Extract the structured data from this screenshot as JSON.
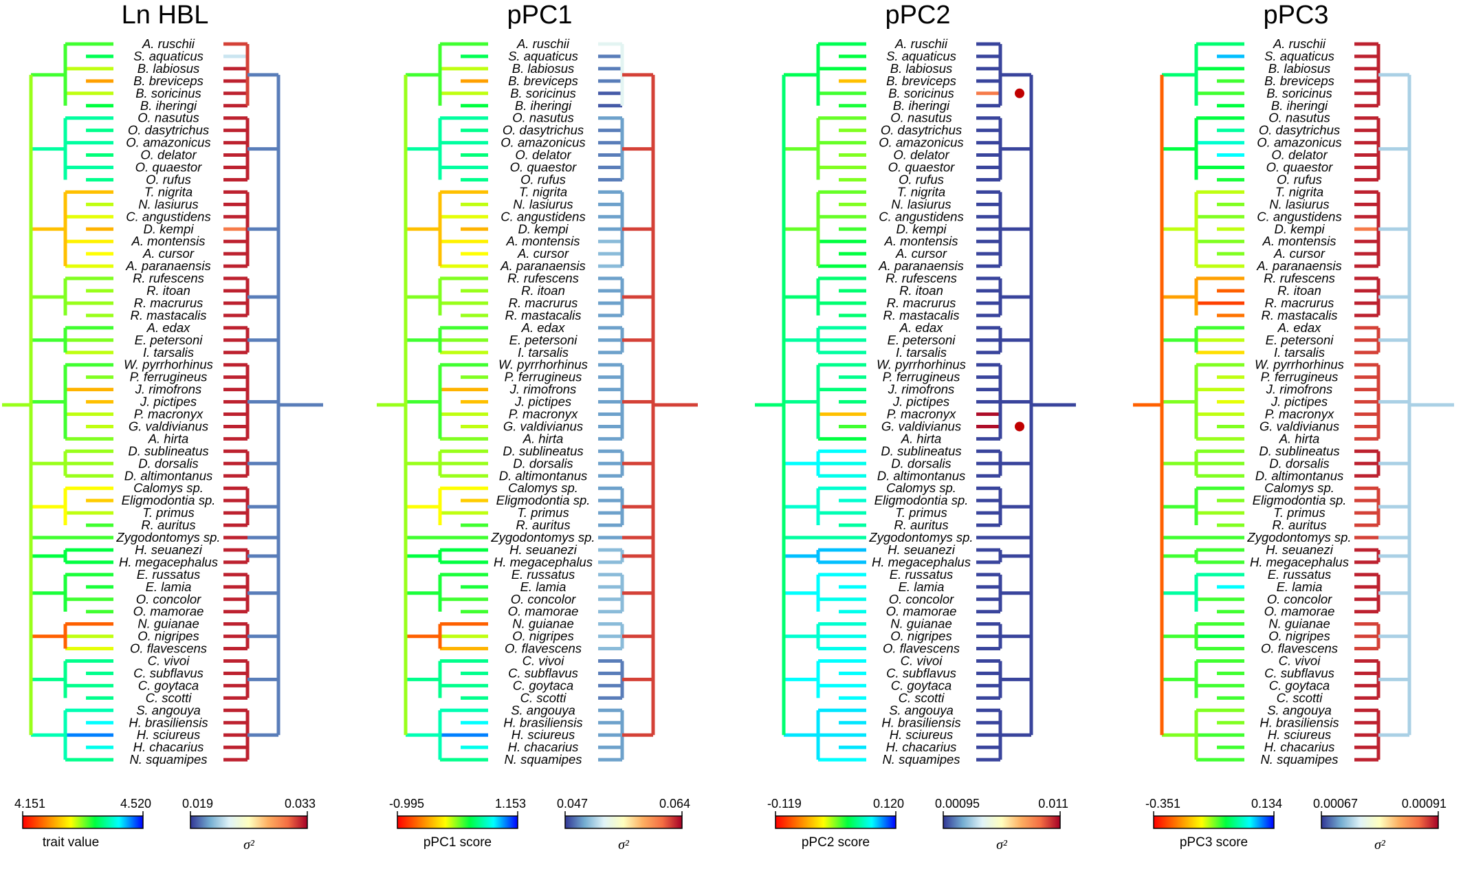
{
  "taxa": [
    "A. ruschii",
    "S. aquaticus",
    "B. labiosus",
    "B. breviceps",
    "B. soricinus",
    "B. iheringi",
    "O. nasutus",
    "O. dasytrichus",
    "O. amazonicus",
    "O. delator",
    "O. quaestor",
    "O. rufus",
    "T. nigrita",
    "N. lasiurus",
    "C. angustidens",
    "D. kempi",
    "A. montensis",
    "A. cursor",
    "A. paranaensis",
    "R. rufescens",
    "R. itoan",
    "R. macrurus",
    "R. mastacalis",
    "A. edax",
    "E. petersoni",
    "I. tarsalis",
    "W. pyrrhorhinus",
    "P. ferrugineus",
    "J. rimofrons",
    "J. pictipes",
    "P. macronyx",
    "G. valdivianus",
    "A. hirta",
    "D. sublineatus",
    "D. dorsalis",
    "D. altimontanus",
    "Calomys sp.",
    "Eligmodontia sp.",
    "T. primus",
    "R. auritus",
    "Zygodontomys sp.",
    "H. seuanezi",
    "H. megacephalus",
    "E. russatus",
    "E. lamia",
    "O. concolor",
    "O. mamorae",
    "N. guianae",
    "O. nigripes",
    "O. flavescens",
    "C. vivoi",
    "C. subflavus",
    "C. goytaca",
    "C. scotti",
    "S. angouya",
    "H. brasiliensis",
    "H. sciureus",
    "H. chacarius",
    "N. squamipes"
  ],
  "panels": [
    {
      "title": "Ln HBL",
      "trait_min": "4.151",
      "trait_max": "4.520",
      "trait_label": "trait value",
      "rate_min": "0.019",
      "rate_max": "0.033",
      "rate_label": "σ²",
      "trait_color_values": [
        0.55,
        0.62,
        0.45,
        0.25,
        0.45,
        0.6,
        0.7,
        0.68,
        0.7,
        0.66,
        0.7,
        0.68,
        0.3,
        0.45,
        0.42,
        0.28,
        0.38,
        0.4,
        0.42,
        0.5,
        0.48,
        0.48,
        0.48,
        0.55,
        0.5,
        0.45,
        0.55,
        0.5,
        0.28,
        0.3,
        0.45,
        0.45,
        0.5,
        0.48,
        0.48,
        0.48,
        0.4,
        0.32,
        0.45,
        0.55,
        0.55,
        0.6,
        0.6,
        0.58,
        0.58,
        0.55,
        0.55,
        0.15,
        0.45,
        0.42,
        0.68,
        0.68,
        0.68,
        0.68,
        0.72,
        0.8,
        0.9,
        0.78,
        0.68
      ],
      "rate_color_values": [
        0.9,
        0.3,
        0.95,
        0.95,
        0.95,
        0.95,
        0.95,
        0.95,
        0.95,
        0.95,
        0.95,
        0.95,
        0.95,
        0.95,
        0.95,
        0.8,
        0.95,
        0.95,
        0.95,
        0.95,
        0.95,
        0.95,
        0.95,
        0.95,
        0.95,
        0.95,
        0.95,
        0.95,
        0.95,
        0.95,
        0.95,
        0.95,
        0.95,
        0.95,
        0.95,
        0.95,
        0.95,
        0.95,
        0.95,
        0.95,
        0.95,
        0.95,
        0.95,
        0.95,
        0.95,
        0.95,
        0.95,
        0.95,
        0.95,
        0.95,
        0.95,
        0.95,
        0.95,
        0.95,
        0.95,
        0.95,
        0.95,
        0.95,
        0.95
      ],
      "rate_backbone": 0.1
    },
    {
      "title": "pPC1",
      "trait_min": "-0.995",
      "trait_max": "1.153",
      "trait_label": "pPC1 score",
      "rate_min": "0.047",
      "rate_max": "0.064",
      "rate_label": "σ²",
      "trait_color_values": [
        0.55,
        0.62,
        0.45,
        0.25,
        0.45,
        0.6,
        0.7,
        0.68,
        0.7,
        0.66,
        0.7,
        0.68,
        0.3,
        0.45,
        0.42,
        0.28,
        0.38,
        0.4,
        0.42,
        0.5,
        0.48,
        0.48,
        0.48,
        0.55,
        0.5,
        0.45,
        0.55,
        0.5,
        0.28,
        0.3,
        0.45,
        0.45,
        0.5,
        0.48,
        0.48,
        0.48,
        0.4,
        0.32,
        0.45,
        0.55,
        0.55,
        0.6,
        0.6,
        0.58,
        0.58,
        0.55,
        0.55,
        0.15,
        0.45,
        0.28,
        0.68,
        0.68,
        0.68,
        0.68,
        0.72,
        0.8,
        0.9,
        0.78,
        0.68
      ],
      "rate_color_values": [
        0.35,
        0.1,
        0.1,
        0.1,
        0.05,
        0.05,
        0.15,
        0.1,
        0.1,
        0.1,
        0.1,
        0.1,
        0.15,
        0.15,
        0.15,
        0.15,
        0.2,
        0.2,
        0.2,
        0.15,
        0.15,
        0.15,
        0.15,
        0.15,
        0.15,
        0.15,
        0.15,
        0.15,
        0.15,
        0.15,
        0.15,
        0.15,
        0.15,
        0.15,
        0.15,
        0.15,
        0.15,
        0.15,
        0.15,
        0.15,
        0.15,
        0.2,
        0.2,
        0.2,
        0.2,
        0.2,
        0.2,
        0.2,
        0.2,
        0.2,
        0.1,
        0.1,
        0.1,
        0.1,
        0.15,
        0.15,
        0.15,
        0.15,
        0.15
      ],
      "rate_backbone": 0.9
    },
    {
      "title": "pPC2",
      "trait_min": "-0.119",
      "trait_max": "0.120",
      "trait_label": "pPC2 score",
      "rate_min": "0.00095",
      "rate_max": "0.011",
      "rate_label": "σ²",
      "trait_color_values": [
        0.62,
        0.6,
        0.6,
        0.3,
        0.55,
        0.58,
        0.52,
        0.5,
        0.52,
        0.5,
        0.5,
        0.5,
        0.52,
        0.5,
        0.52,
        0.55,
        0.6,
        0.6,
        0.6,
        0.65,
        0.65,
        0.65,
        0.65,
        0.7,
        0.7,
        0.7,
        0.68,
        0.68,
        0.66,
        0.66,
        0.3,
        0.55,
        0.6,
        0.8,
        0.78,
        0.78,
        0.75,
        0.75,
        0.72,
        0.7,
        0.7,
        0.85,
        0.85,
        0.8,
        0.8,
        0.78,
        0.78,
        0.75,
        0.78,
        0.78,
        0.8,
        0.8,
        0.8,
        0.8,
        0.82,
        0.82,
        0.82,
        0.82,
        0.8
      ],
      "rate_color_values": [
        0.02,
        0.02,
        0.02,
        0.02,
        0.8,
        0.02,
        0.02,
        0.02,
        0.02,
        0.02,
        0.02,
        0.02,
        0.02,
        0.02,
        0.02,
        0.02,
        0.02,
        0.02,
        0.02,
        0.02,
        0.02,
        0.02,
        0.02,
        0.02,
        0.02,
        0.02,
        0.02,
        0.02,
        0.02,
        0.02,
        0.98,
        0.98,
        0.02,
        0.02,
        0.02,
        0.02,
        0.02,
        0.02,
        0.02,
        0.02,
        0.02,
        0.02,
        0.02,
        0.02,
        0.02,
        0.02,
        0.02,
        0.02,
        0.02,
        0.02,
        0.02,
        0.02,
        0.02,
        0.02,
        0.02,
        0.02,
        0.02,
        0.02,
        0.02
      ],
      "rate_backbone": 0.02
    },
    {
      "title": "pPC3",
      "trait_min": "-0.351",
      "trait_max": "0.134",
      "trait_label": "pPC3 score",
      "rate_min": "0.00067",
      "rate_max": "0.00091",
      "rate_label": "σ²",
      "trait_color_values": [
        0.65,
        0.85,
        0.6,
        0.55,
        0.55,
        0.6,
        0.6,
        0.7,
        0.75,
        0.8,
        0.6,
        0.58,
        0.45,
        0.5,
        0.5,
        0.45,
        0.5,
        0.5,
        0.45,
        0.25,
        0.15,
        0.1,
        0.18,
        0.55,
        0.45,
        0.35,
        0.5,
        0.45,
        0.45,
        0.42,
        0.45,
        0.5,
        0.48,
        0.5,
        0.5,
        0.5,
        0.55,
        0.5,
        0.48,
        0.5,
        0.55,
        0.55,
        0.55,
        0.7,
        0.8,
        0.55,
        0.55,
        0.55,
        0.6,
        0.55,
        0.55,
        0.55,
        0.55,
        0.55,
        0.5,
        0.5,
        0.55,
        0.55,
        0.55
      ],
      "rate_color_values": [
        0.95,
        0.95,
        0.95,
        0.95,
        0.95,
        0.95,
        0.95,
        0.95,
        0.95,
        0.95,
        0.95,
        0.95,
        0.95,
        0.95,
        0.95,
        0.8,
        0.95,
        0.95,
        0.95,
        0.95,
        0.95,
        0.95,
        0.95,
        0.9,
        0.9,
        0.9,
        0.9,
        0.9,
        0.9,
        0.9,
        0.9,
        0.9,
        0.9,
        0.95,
        0.95,
        0.95,
        0.9,
        0.9,
        0.9,
        0.9,
        0.9,
        0.95,
        0.95,
        0.95,
        0.95,
        0.95,
        0.95,
        0.9,
        0.9,
        0.9,
        0.95,
        0.95,
        0.95,
        0.95,
        0.95,
        0.95,
        0.95,
        0.95,
        0.95
      ],
      "rate_backbone": 0.25
    }
  ],
  "colormaps": {
    "trait": [
      "#ff0000",
      "#ff8000",
      "#ffff00",
      "#00ff40",
      "#00ffff",
      "#0000ff"
    ],
    "rate": [
      "#313695",
      "#74add1",
      "#e0f3f8",
      "#ffffbf",
      "#fdae61",
      "#f46d43",
      "#a50026"
    ]
  },
  "markers": [
    {
      "panel": 2,
      "taxon": "B. soricinus"
    },
    {
      "panel": 2,
      "taxon": "G. valdivianus"
    }
  ]
}
